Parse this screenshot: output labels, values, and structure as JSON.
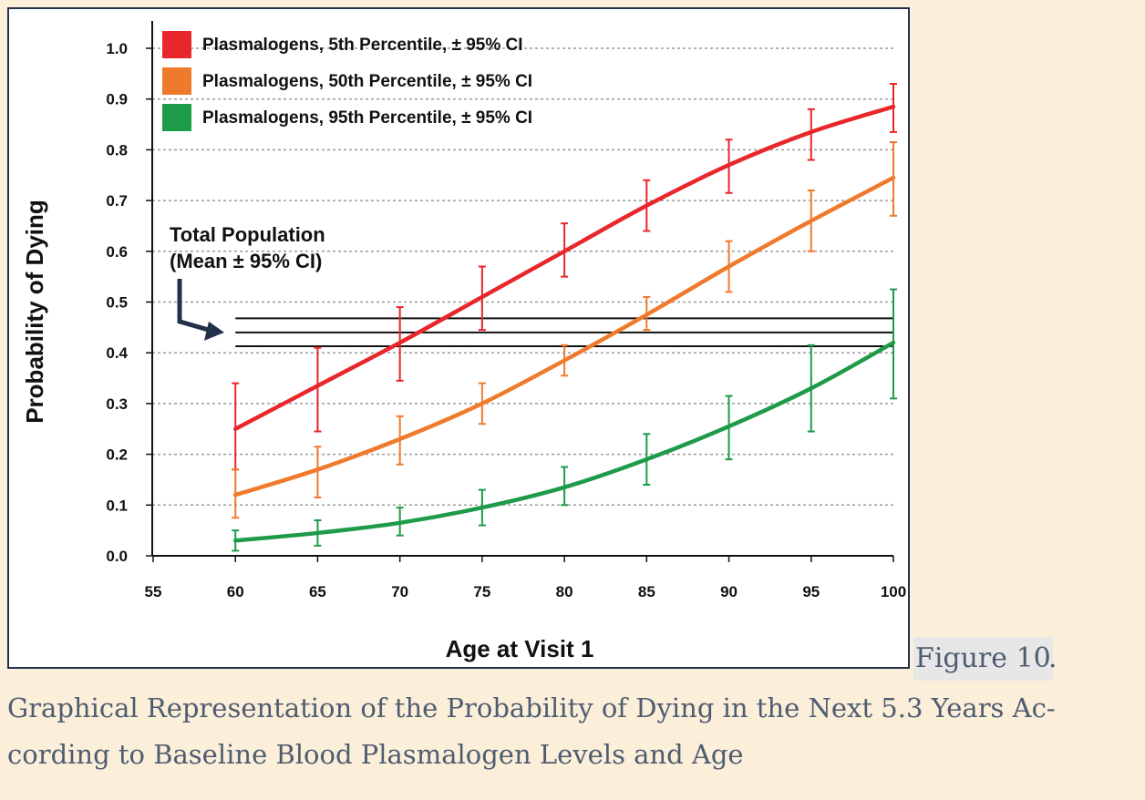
{
  "caption": {
    "label": "Figure 10",
    "label_suffix": ".",
    "text": "Graphical Representation of the Probability of Dying in the Next 5.3 Years Ac-cording to Baseline Blood Plasmalogen Levels and Age"
  },
  "chart_data": {
    "type": "line",
    "xlabel": "Age at Visit 1",
    "ylabel": "Probability of Dying",
    "xlim": [
      55,
      100
    ],
    "ylim": [
      0.0,
      1.0
    ],
    "x_ticks": [
      "55",
      "60",
      "65",
      "70",
      "75",
      "80",
      "85",
      "90",
      "95",
      "100"
    ],
    "y_ticks": [
      "0.0",
      "0.1",
      "0.2",
      "0.3",
      "0.4",
      "0.5",
      "0.6",
      "0.7",
      "0.8",
      "0.9",
      "1.0"
    ],
    "grid": "horizontal dotted",
    "legend_position": "top-left",
    "x": [
      60,
      65,
      70,
      75,
      80,
      85,
      90,
      95,
      100
    ],
    "series": [
      {
        "name": "Plasmalogens, 5th Percentile, ± 95% CI",
        "color": "#e8262b",
        "values": [
          0.25,
          0.335,
          0.42,
          0.51,
          0.6,
          0.69,
          0.77,
          0.835,
          0.885
        ],
        "ci_lower": [
          0.17,
          0.245,
          0.345,
          0.445,
          0.55,
          0.64,
          0.715,
          0.78,
          0.835
        ],
        "ci_upper": [
          0.34,
          0.41,
          0.49,
          0.57,
          0.655,
          0.74,
          0.82,
          0.88,
          0.93
        ]
      },
      {
        "name": "Plasmalogens, 50th Percentile, ± 95% CI",
        "color": "#f07a2c",
        "values": [
          0.12,
          0.17,
          0.23,
          0.3,
          0.385,
          0.475,
          0.57,
          0.66,
          0.745
        ],
        "ci_lower": [
          0.075,
          0.115,
          0.18,
          0.26,
          0.355,
          0.445,
          0.52,
          0.6,
          0.67
        ],
        "ci_upper": [
          0.17,
          0.215,
          0.275,
          0.34,
          0.415,
          0.51,
          0.62,
          0.72,
          0.815
        ]
      },
      {
        "name": "Plasmalogens, 95th Percentile, ± 95% CI",
        "color": "#1e9b48",
        "values": [
          0.03,
          0.045,
          0.065,
          0.095,
          0.135,
          0.19,
          0.255,
          0.33,
          0.42
        ],
        "ci_lower": [
          0.01,
          0.02,
          0.04,
          0.06,
          0.1,
          0.14,
          0.19,
          0.245,
          0.31
        ],
        "ci_upper": [
          0.05,
          0.07,
          0.095,
          0.13,
          0.175,
          0.24,
          0.315,
          0.415,
          0.525
        ]
      }
    ],
    "reference": {
      "label_line1": "Total Population",
      "label_line2": "(Mean ± 95% CI)",
      "x_range": [
        60,
        100
      ],
      "mean": 0.44,
      "ci_lower": 0.413,
      "ci_upper": 0.468,
      "color": "#111111"
    },
    "arrow_color": "#223049"
  }
}
